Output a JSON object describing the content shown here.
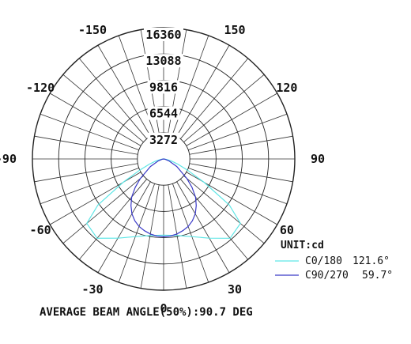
{
  "chart_data": {
    "type": "polar",
    "title": "",
    "unit_label": "UNIT:cd",
    "radial_max": 16360,
    "radial_ticks": [
      3272,
      6544,
      9816,
      13088,
      16360
    ],
    "radial_tick_labels": [
      "3272",
      "6544",
      "9816",
      "13088",
      "16360"
    ],
    "angle_tick_labels": [
      {
        "angle": 0,
        "label": "0"
      },
      {
        "angle": 30,
        "label": "30"
      },
      {
        "angle": 60,
        "label": "60"
      },
      {
        "angle": 90,
        "label": "90"
      },
      {
        "angle": 120,
        "label": "120"
      },
      {
        "angle": 150,
        "label": "150"
      },
      {
        "angle": -30,
        "label": "-30"
      },
      {
        "angle": -60,
        "label": "-60"
      },
      {
        "angle": -90,
        "label": "-90"
      },
      {
        "angle": -120,
        "label": "-120"
      },
      {
        "angle": -150,
        "label": "-150"
      }
    ],
    "grid": true,
    "spoke_step_deg": 10,
    "legend_position": "bottom-right",
    "series": [
      {
        "name": "C0/180",
        "beam_angle": "121.6°",
        "color": "#5ee6e6",
        "angles": [
          0,
          10,
          20,
          30,
          40,
          50,
          55,
          60,
          65,
          70,
          75,
          80,
          85,
          90
        ],
        "values": [
          9500,
          9700,
          10300,
          11400,
          12900,
          12500,
          10000,
          5800,
          3300,
          1900,
          1000,
          400,
          120,
          0
        ]
      },
      {
        "name": "C90/270",
        "beam_angle": "59.7°",
        "color": "#3a3ac8",
        "angles": [
          0,
          5,
          10,
          15,
          20,
          25,
          30,
          35,
          40,
          45,
          50,
          60,
          70,
          80,
          90
        ],
        "values": [
          9700,
          9650,
          9500,
          9250,
          8950,
          8500,
          7900,
          7100,
          6200,
          5000,
          3800,
          1900,
          700,
          200,
          0
        ]
      }
    ],
    "footer_text": "AVERAGE BEAM ANGLE(50%):90.7 DEG"
  }
}
